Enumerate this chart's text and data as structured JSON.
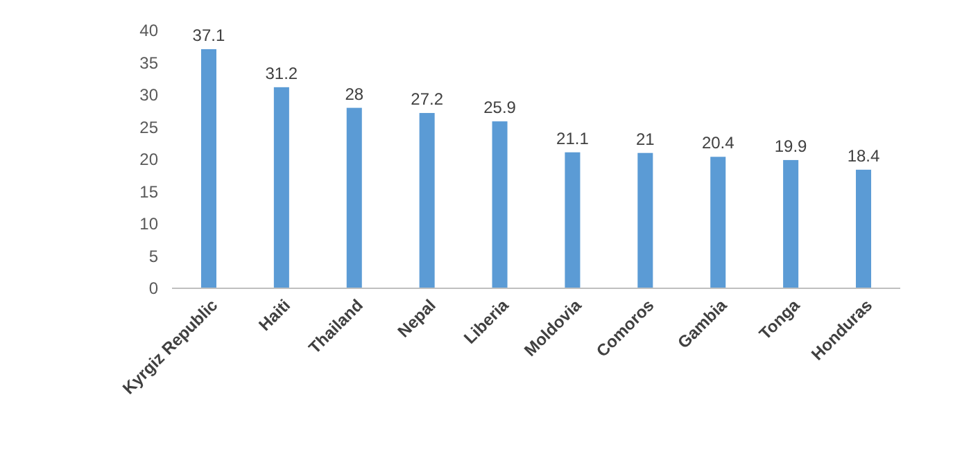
{
  "chart_data": {
    "type": "bar",
    "categories": [
      "Kyrgiz Republic",
      "Haiti",
      "Thailand",
      "Nepal",
      "Liberia",
      "Moldovia",
      "Comoros",
      "Gambia",
      "Tonga",
      "Honduras"
    ],
    "values": [
      37.1,
      31.2,
      28,
      27.2,
      25.9,
      21.1,
      21,
      20.4,
      19.9,
      18.4
    ],
    "color": "#5b9bd5",
    "ylim": [
      0,
      40
    ],
    "yticks": [
      0,
      5,
      10,
      15,
      20,
      25,
      30,
      35,
      40
    ],
    "grid": false,
    "data_labels": true
  }
}
